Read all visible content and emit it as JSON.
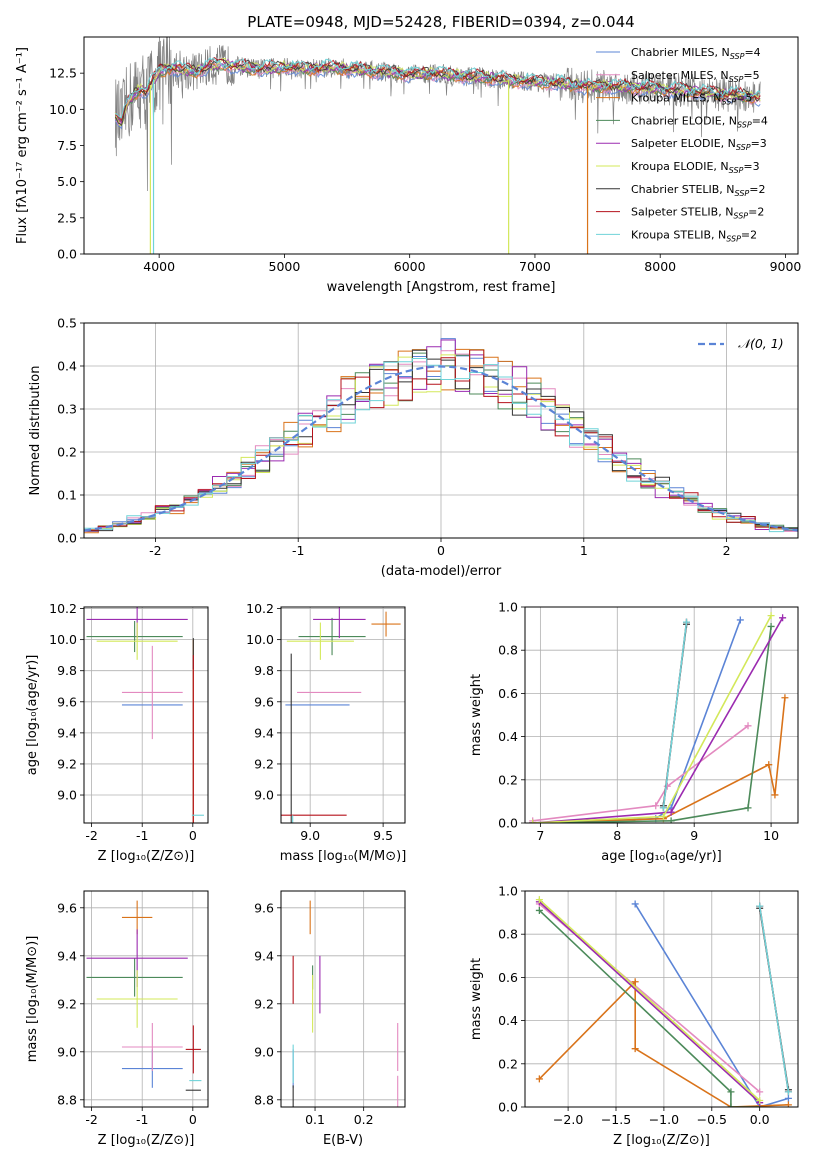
{
  "figure": {
    "title": "PLATE=0948, MJD=52428, FIBERID=0394, z=0.044"
  },
  "models": [
    {
      "label": "Chabrier MILES, N",
      "sub": "SSP",
      "suffix": "=4",
      "color": "#5b84d6"
    },
    {
      "label": "Salpeter MILES, N",
      "sub": "SSP",
      "suffix": "=5",
      "color": "#e38ac0"
    },
    {
      "label": "Kroupa MILES, N",
      "sub": "SSP",
      "suffix": "=5",
      "color": "#d9731a"
    },
    {
      "label": "Chabrier ELODIE, N",
      "sub": "SSP",
      "suffix": "=4",
      "color": "#4c8a5a"
    },
    {
      "label": "Salpeter ELODIE, N",
      "sub": "SSP",
      "suffix": "=3",
      "color": "#9b2bb0"
    },
    {
      "label": "Kroupa ELODIE, N",
      "sub": "SSP",
      "suffix": "=3",
      "color": "#d3e85a"
    },
    {
      "label": "Chabrier STELIB, N",
      "sub": "SSP",
      "suffix": "=2",
      "color": "#333333"
    },
    {
      "label": "Salpeter STELIB, N",
      "sub": "SSP",
      "suffix": "=2",
      "color": "#b5121b"
    },
    {
      "label": "Kroupa STELIB, N",
      "sub": "SSP",
      "suffix": "=2",
      "color": "#6fd3d8"
    }
  ],
  "chart_data": [
    {
      "id": "spectrum",
      "type": "line",
      "xlabel": "wavelength [Angstrom, rest frame]",
      "ylabel": "Flux [fλ10⁻¹⁷ erg cm⁻² s⁻¹ A⁻¹]",
      "xlim": [
        3400,
        9100
      ],
      "ylim": [
        0,
        15
      ],
      "xticks": [
        4000,
        5000,
        6000,
        7000,
        8000,
        9000
      ],
      "yticks": [
        0.0,
        2.5,
        5.0,
        7.5,
        10.0,
        12.5
      ],
      "legend": "upper-right",
      "data_color": "#808080",
      "continuum": {
        "x": [
          3650,
          3700,
          3750,
          3800,
          3850,
          3900,
          3950,
          4000,
          4100,
          4200,
          4300,
          4400,
          4500,
          4600,
          4800,
          5000,
          5200,
          5400,
          5600,
          5800,
          6000,
          6200,
          6400,
          6600,
          6800,
          7000,
          7200,
          7400,
          7600,
          7800,
          8000,
          8200,
          8400,
          8600,
          8800
        ],
        "y": [
          9.6,
          9.0,
          10.5,
          11.0,
          11.4,
          11.2,
          12.0,
          12.6,
          12.9,
          12.7,
          12.6,
          13.0,
          13.1,
          13.0,
          12.8,
          12.9,
          12.8,
          12.9,
          12.7,
          12.6,
          12.4,
          12.5,
          12.3,
          12.2,
          12.0,
          11.9,
          11.8,
          11.6,
          11.6,
          11.5,
          11.4,
          11.3,
          11.1,
          11.0,
          10.8
        ]
      },
      "dropouts": [
        {
          "x": 3930,
          "color": "#d3e85a"
        },
        {
          "x": 3955,
          "color": "#6fd3d8"
        },
        {
          "x": 6790,
          "color": "#d3e85a"
        },
        {
          "x": 7420,
          "color": "#d9731a"
        }
      ]
    },
    {
      "id": "residuals",
      "type": "line",
      "xlabel": "(data-model)/error",
      "ylabel": "Normed distribution",
      "xlim": [
        -2.5,
        2.5
      ],
      "ylim": [
        0,
        0.5
      ],
      "xticks": [
        -2,
        -1,
        0,
        1,
        2
      ],
      "yticks": [
        0.0,
        0.1,
        0.2,
        0.3,
        0.4,
        0.5
      ],
      "legend": "upper-right",
      "reference": {
        "label": "𝒩(0, 1)",
        "color": "#5b84d6",
        "style": "dashed"
      },
      "bin_width": 0.1
    },
    {
      "id": "age-vs-Z",
      "type": "scatter",
      "xlabel": "Z [log₁₀(Z/Z⊙)]",
      "ylabel": "age  [log₁₀(age/yr)]",
      "xlim": [
        -2.15,
        0.3
      ],
      "ylim": [
        8.82,
        10.21
      ],
      "xticks": [
        -2,
        -1,
        0
      ],
      "yticks": [
        9.0,
        9.2,
        9.4,
        9.6,
        9.8,
        10.0,
        10.2
      ],
      "points": [
        {
          "model": 0,
          "x": -0.8,
          "y": 9.58,
          "xerr": 0.6,
          "yerr": 0.0
        },
        {
          "model": 1,
          "x": -0.8,
          "y": 9.66,
          "xerr": 0.6,
          "yerr": 0.3
        },
        {
          "model": 2,
          "x": 0.01,
          "y": 10.0,
          "xerr": 0.0,
          "yerr": 0.0
        },
        {
          "model": 3,
          "x": -1.15,
          "y": 10.02,
          "xerr": 0.95,
          "yerr": 0.1
        },
        {
          "model": 4,
          "x": -1.1,
          "y": 10.13,
          "xerr": 1.0,
          "yerr": 0.12
        },
        {
          "model": 5,
          "x": -1.1,
          "y": 9.99,
          "xerr": 0.8,
          "yerr": 0.12
        },
        {
          "model": 6,
          "x": 0.01,
          "y": 9.91,
          "xerr": 0.0,
          "yerr": 0.1
        },
        {
          "model": 7,
          "x": 0.01,
          "y": 9.9,
          "xerr": 0.0,
          "yerr": 0.0
        },
        {
          "model": 8,
          "x": 0.1,
          "y": 8.87,
          "xerr": 0.12,
          "yerr": 0.0
        }
      ]
    },
    {
      "id": "age-vs-mass",
      "type": "scatter",
      "xlabel": "mass [log₁₀(M/M⊙)]",
      "ylabel": "",
      "xlim": [
        8.8,
        9.65
      ],
      "ylim": [
        8.82,
        10.21
      ],
      "xticks": [
        9.0,
        9.5
      ],
      "yticks": [
        9.0,
        9.2,
        9.4,
        9.6,
        9.8,
        10.0,
        10.2
      ],
      "points": [
        {
          "model": 0,
          "x": 9.05,
          "y": 9.58,
          "xerr": 0.22,
          "yerr": 0.0
        },
        {
          "model": 1,
          "x": 9.13,
          "y": 9.66,
          "xerr": 0.22,
          "yerr": 0.0
        },
        {
          "model": 2,
          "x": 9.52,
          "y": 10.1,
          "xerr": 0.1,
          "yerr": 0.08
        },
        {
          "model": 3,
          "x": 9.15,
          "y": 10.02,
          "xerr": 0.23,
          "yerr": 0.12
        },
        {
          "model": 4,
          "x": 9.2,
          "y": 10.13,
          "xerr": 0.18,
          "yerr": 0.12
        },
        {
          "model": 5,
          "x": 9.07,
          "y": 9.99,
          "xerr": 0.23,
          "yerr": 0.12
        },
        {
          "model": 6,
          "x": 8.87,
          "y": 9.91,
          "xerr": 0.0,
          "yerr": 0.0
        },
        {
          "model": 7,
          "x": 9.0,
          "y": 8.87,
          "xerr": 0.25,
          "yerr": 0.0
        },
        {
          "model": 8,
          "x": 8.88,
          "y": 8.87,
          "xerr": 0.0,
          "yerr": 0.0
        }
      ]
    },
    {
      "id": "mass-weight-vs-age",
      "type": "line",
      "xlabel": "age  [log₁₀(age/yr)]",
      "ylabel": "mass weight",
      "xlim": [
        6.8,
        10.35
      ],
      "ylim": [
        0,
        1
      ],
      "xticks": [
        7,
        8,
        9,
        10
      ],
      "yticks": [
        0.0,
        0.2,
        0.4,
        0.6,
        0.8,
        1.0
      ],
      "series": [
        {
          "model": 0,
          "x": [
            6.9,
            8.5,
            8.7,
            9.6
          ],
          "y": [
            0.0,
            0.02,
            0.07,
            0.94
          ]
        },
        {
          "model": 1,
          "x": [
            6.9,
            8.5,
            8.65,
            9.7
          ],
          "y": [
            0.01,
            0.08,
            0.17,
            0.45
          ]
        },
        {
          "model": 2,
          "x": [
            6.9,
            8.6,
            9.97,
            10.05,
            10.18
          ],
          "y": [
            0.0,
            0.02,
            0.27,
            0.13,
            0.58
          ]
        },
        {
          "model": 3,
          "x": [
            6.9,
            8.7,
            9.7,
            10.0
          ],
          "y": [
            0.0,
            0.01,
            0.07,
            0.91
          ]
        },
        {
          "model": 4,
          "x": [
            6.9,
            8.7,
            10.15
          ],
          "y": [
            0.0,
            0.05,
            0.95
          ]
        },
        {
          "model": 5,
          "x": [
            6.9,
            8.6,
            10.0
          ],
          "y": [
            0.0,
            0.03,
            0.96
          ]
        },
        {
          "model": 6,
          "x": [
            8.6,
            8.9
          ],
          "y": [
            0.08,
            0.92
          ]
        },
        {
          "model": 7,
          "x": [
            8.6,
            8.9
          ],
          "y": [
            0.07,
            0.93
          ]
        },
        {
          "model": 8,
          "x": [
            8.6,
            8.9
          ],
          "y": [
            0.07,
            0.93
          ]
        }
      ]
    },
    {
      "id": "mass-vs-Z",
      "type": "scatter",
      "xlabel": "Z [log₁₀(Z/Z⊙)]",
      "ylabel": "mass [log₁₀(M/M⊙)]",
      "xlim": [
        -2.15,
        0.3
      ],
      "ylim": [
        8.77,
        9.67
      ],
      "xticks": [
        -2,
        -1,
        0
      ],
      "yticks": [
        8.8,
        9.0,
        9.2,
        9.4,
        9.6
      ],
      "points": [
        {
          "model": 0,
          "x": -0.8,
          "y": 8.93,
          "xerr": 0.6,
          "yerr": 0.08
        },
        {
          "model": 1,
          "x": -0.8,
          "y": 9.02,
          "xerr": 0.6,
          "yerr": 0.1
        },
        {
          "model": 2,
          "x": -1.1,
          "y": 9.56,
          "xerr": 0.3,
          "yerr": 0.07
        },
        {
          "model": 3,
          "x": -1.15,
          "y": 9.31,
          "xerr": 0.95,
          "yerr": 0.08
        },
        {
          "model": 4,
          "x": -1.1,
          "y": 9.39,
          "xerr": 1.0,
          "yerr": 0.12
        },
        {
          "model": 5,
          "x": -1.1,
          "y": 9.22,
          "xerr": 0.8,
          "yerr": 0.12
        },
        {
          "model": 6,
          "x": 0.01,
          "y": 8.84,
          "xerr": 0.15,
          "yerr": 0.0
        },
        {
          "model": 7,
          "x": 0.01,
          "y": 9.01,
          "xerr": 0.15,
          "yerr": 0.1
        },
        {
          "model": 8,
          "x": 0.05,
          "y": 8.88,
          "xerr": 0.12,
          "yerr": 0.0
        }
      ]
    },
    {
      "id": "mass-vs-ebv",
      "type": "scatter",
      "xlabel": "E(B-V)",
      "ylabel": "",
      "xlim": [
        0.03,
        0.285
      ],
      "ylim": [
        8.77,
        9.67
      ],
      "xticks": [
        0.1,
        0.2
      ],
      "yticks": [
        8.8,
        9.0,
        9.2,
        9.4,
        9.6
      ],
      "points": [
        {
          "model": 0,
          "x": 0.055,
          "y": 8.93,
          "xerr": 0.0,
          "yerr": 0.08
        },
        {
          "model": 1,
          "x": 0.27,
          "y": 9.02,
          "xerr": 0.0,
          "yerr": 0.1
        },
        {
          "model": 2,
          "x": 0.09,
          "y": 9.56,
          "xerr": 0.0,
          "yerr": 0.07
        },
        {
          "model": 3,
          "x": 0.095,
          "y": 9.31,
          "xerr": 0.0,
          "yerr": 0.05
        },
        {
          "model": 4,
          "x": 0.11,
          "y": 9.28,
          "xerr": 0.0,
          "yerr": 0.12
        },
        {
          "model": 5,
          "x": 0.095,
          "y": 9.2,
          "xerr": 0.0,
          "yerr": 0.12
        },
        {
          "model": 6,
          "x": 0.055,
          "y": 8.86,
          "xerr": 0.0,
          "yerr": 0.0
        },
        {
          "model": 7,
          "x": 0.055,
          "y": 9.3,
          "xerr": 0.0,
          "yerr": 0.1
        },
        {
          "model": 8,
          "x": 0.055,
          "y": 8.95,
          "xerr": 0.0,
          "yerr": 0.08
        },
        {
          "model": 1,
          "x": 0.27,
          "y": 8.9,
          "xerr": 0.0,
          "yerr": 0.0
        }
      ]
    },
    {
      "id": "mass-weight-vs-Z",
      "type": "line",
      "xlabel": "Z [log₁₀(Z/Z⊙)]",
      "ylabel": "mass weight",
      "xlim": [
        -2.45,
        0.4
      ],
      "ylim": [
        0,
        1
      ],
      "xticks": [
        -2.0,
        -1.5,
        -1.0,
        -0.5,
        0.0
      ],
      "yticks": [
        0.0,
        0.2,
        0.4,
        0.6,
        0.8,
        1.0
      ],
      "series": [
        {
          "model": 0,
          "x": [
            -1.3,
            0.0,
            0.3
          ],
          "y": [
            0.94,
            0.0,
            0.04
          ]
        },
        {
          "model": 1,
          "x": [
            -2.3,
            0.0
          ],
          "y": [
            0.94,
            0.07
          ]
        },
        {
          "model": 2,
          "x": [
            -2.3,
            -1.3,
            -1.3,
            -0.3,
            0.3
          ],
          "y": [
            0.13,
            0.58,
            0.27,
            0.0,
            0.01
          ]
        },
        {
          "model": 3,
          "x": [
            -2.3,
            -0.3,
            -0.3,
            0.0
          ],
          "y": [
            0.91,
            0.07,
            0.0,
            0.0
          ]
        },
        {
          "model": 4,
          "x": [
            -2.3,
            0.0
          ],
          "y": [
            0.95,
            0.02
          ]
        },
        {
          "model": 5,
          "x": [
            -2.3,
            0.0
          ],
          "y": [
            0.96,
            0.03
          ]
        },
        {
          "model": 6,
          "x": [
            0.0,
            0.3
          ],
          "y": [
            0.92,
            0.08
          ]
        },
        {
          "model": 7,
          "x": [
            0.0,
            0.3
          ],
          "y": [
            0.93,
            0.07
          ]
        },
        {
          "model": 8,
          "x": [
            0.0,
            0.3
          ],
          "y": [
            0.93,
            0.07
          ]
        }
      ]
    }
  ]
}
